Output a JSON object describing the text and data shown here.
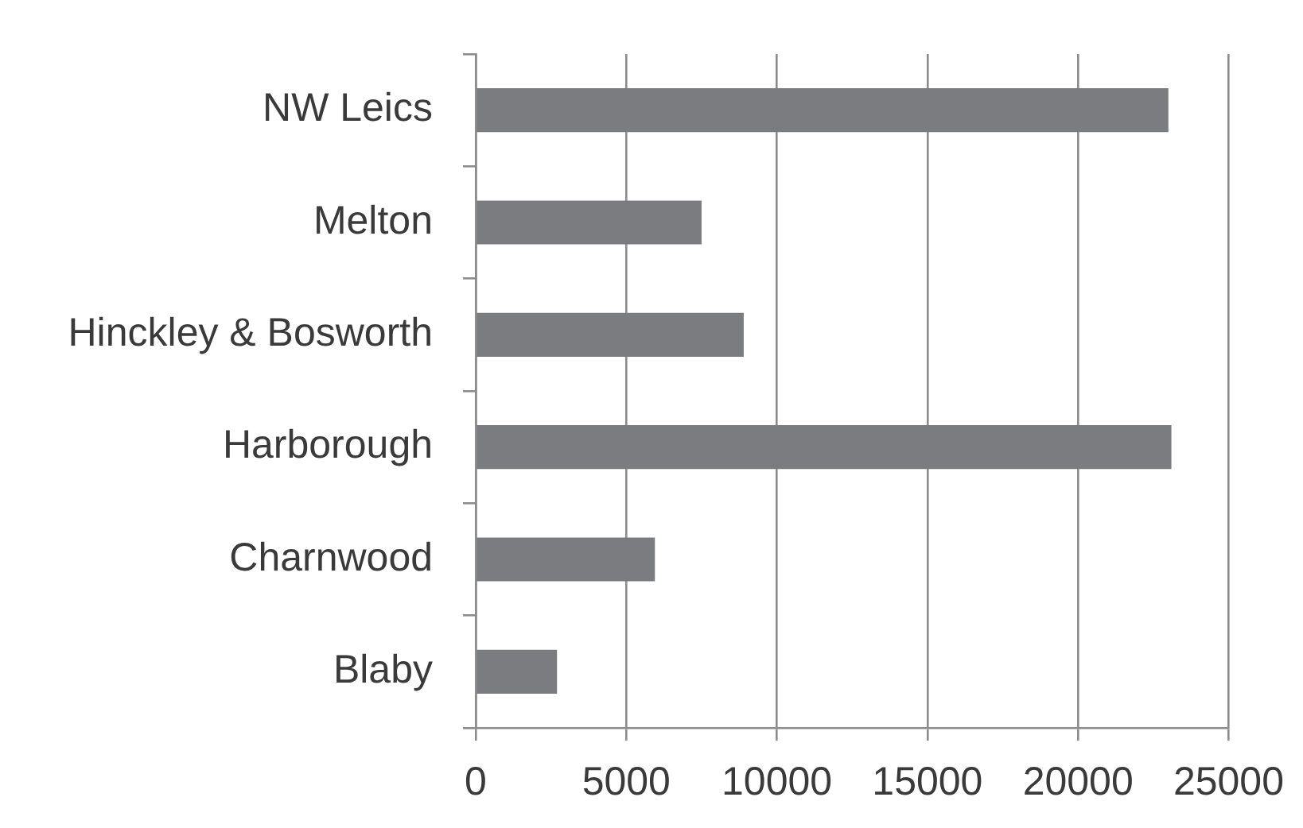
{
  "chart_data": {
    "type": "bar",
    "orientation": "horizontal",
    "categories": [
      "NW Leics",
      "Melton",
      "Hinckley & Bosworth",
      "Harborough",
      "Charnwood",
      "Blaby"
    ],
    "values": [
      23000,
      7500,
      8900,
      23100,
      5950,
      2700
    ],
    "color": "#7b7c80",
    "xlim": [
      0,
      25000
    ],
    "xticks": [
      0,
      5000,
      10000,
      15000,
      20000,
      25000
    ],
    "grid": "x"
  }
}
